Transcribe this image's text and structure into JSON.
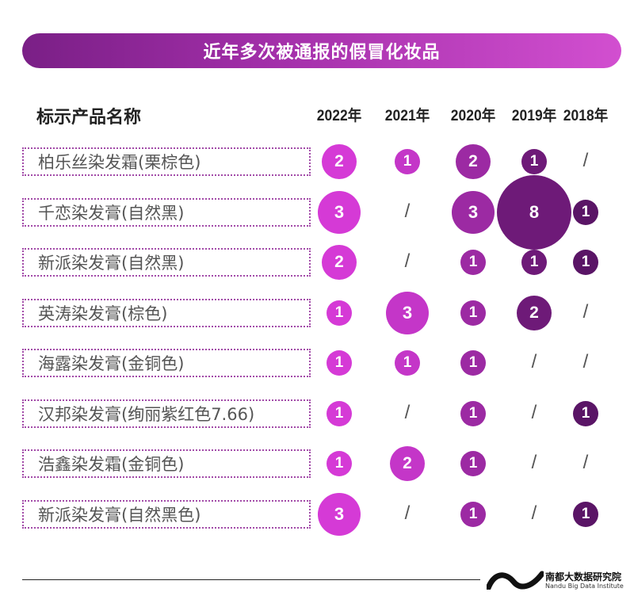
{
  "header": {
    "title": "近年多次被通报的假冒化妆品"
  },
  "footer": {
    "org_cn": "南都大数据研究院",
    "org_en": "Nandu Big Data Institute"
  },
  "colors": {
    "y2022": "#d53ad6",
    "y2021": "#c436c8",
    "y2020": "#9c2aa3",
    "y2019": "#6e1a78",
    "y2018": "#5a1566"
  },
  "chart_data": {
    "type": "table",
    "title": "近年多次被通报的假冒化妆品",
    "row_header": "标示产品名称",
    "years": [
      "2022年",
      "2021年",
      "2020年",
      "2019年",
      "2018年"
    ],
    "missing_symbol": "/",
    "rows": [
      {
        "product": "柏乐丝染发霜(栗棕色)",
        "counts": [
          2,
          1,
          2,
          1,
          null
        ]
      },
      {
        "product": "千恋染发膏(自然黑)",
        "counts": [
          3,
          null,
          3,
          8,
          1
        ]
      },
      {
        "product": "新派染发膏(自然黑)",
        "counts": [
          2,
          null,
          1,
          1,
          1
        ]
      },
      {
        "product": "英涛染发膏(棕色)",
        "counts": [
          1,
          3,
          1,
          2,
          null
        ]
      },
      {
        "product": "海露染发膏(金铜色)",
        "counts": [
          1,
          1,
          1,
          null,
          null
        ]
      },
      {
        "product": "汉邦染发膏(绚丽紫红色7.66)",
        "counts": [
          1,
          null,
          1,
          null,
          1
        ]
      },
      {
        "product": "浩鑫染发霜(金铜色)",
        "counts": [
          1,
          2,
          1,
          null,
          null
        ]
      },
      {
        "product": "新派染发膏(自然黑色)",
        "counts": [
          3,
          null,
          1,
          null,
          1
        ]
      }
    ]
  }
}
